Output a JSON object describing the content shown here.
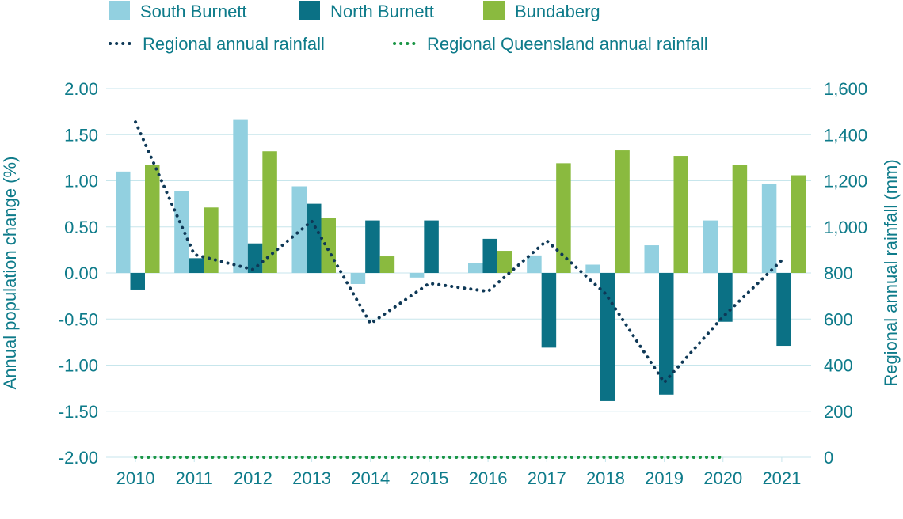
{
  "chart_data": {
    "type": "bar",
    "categories": [
      "2010",
      "2011",
      "2012",
      "2013",
      "2014",
      "2015",
      "2016",
      "2017",
      "2018",
      "2019",
      "2020",
      "2021"
    ],
    "series": [
      {
        "name": "South Burnett",
        "kind": "bar",
        "axis": "left",
        "color": "#92d0e0",
        "values": [
          1.1,
          0.89,
          1.66,
          0.94,
          -0.12,
          -0.05,
          0.11,
          0.19,
          0.09,
          0.3,
          0.57,
          0.97
        ]
      },
      {
        "name": "North Burnett",
        "kind": "bar",
        "axis": "left",
        "color": "#0b7185",
        "values": [
          -0.18,
          0.16,
          0.32,
          0.75,
          0.57,
          0.57,
          0.37,
          -0.81,
          -1.39,
          -1.32,
          -0.53,
          -0.79
        ]
      },
      {
        "name": "Bundaberg",
        "kind": "bar",
        "axis": "left",
        "color": "#8aba3f",
        "values": [
          1.17,
          0.71,
          1.32,
          0.6,
          0.18,
          null,
          0.24,
          1.19,
          1.33,
          1.27,
          1.17,
          1.06
        ]
      },
      {
        "name": "Regional annual rainfall",
        "kind": "line",
        "style": "dotted",
        "axis": "right",
        "color": "#0e3856",
        "values": [
          1455,
          880,
          815,
          1025,
          580,
          755,
          720,
          940,
          710,
          325,
          610,
          855
        ]
      },
      {
        "name": "Regional Queensland annual rainfall",
        "kind": "line",
        "style": "dotted",
        "axis": "right",
        "color": "#1a9545",
        "values": [
          0,
          0,
          0,
          0,
          0,
          0,
          0,
          0,
          0,
          0,
          0,
          null
        ]
      }
    ],
    "ylabel": "Annual population change (%)",
    "y2label": "Regional annual rainfall (mm)",
    "ylim": [
      -2.0,
      2.0
    ],
    "y2lim": [
      0,
      1600
    ],
    "yticks": [
      "-2.00",
      "-1.50",
      "-1.00",
      "-0.50",
      "0.00",
      "0.50",
      "1.00",
      "1.50",
      "2.00"
    ],
    "y2ticks": [
      "0",
      "200",
      "400",
      "600",
      "800",
      "1,000",
      "1,200",
      "1,400",
      "1,600"
    ],
    "grid": true,
    "legend_position": "top-left",
    "colors": {
      "axis_text": "#0e7b8a",
      "grid": "#c7e6ec"
    }
  }
}
